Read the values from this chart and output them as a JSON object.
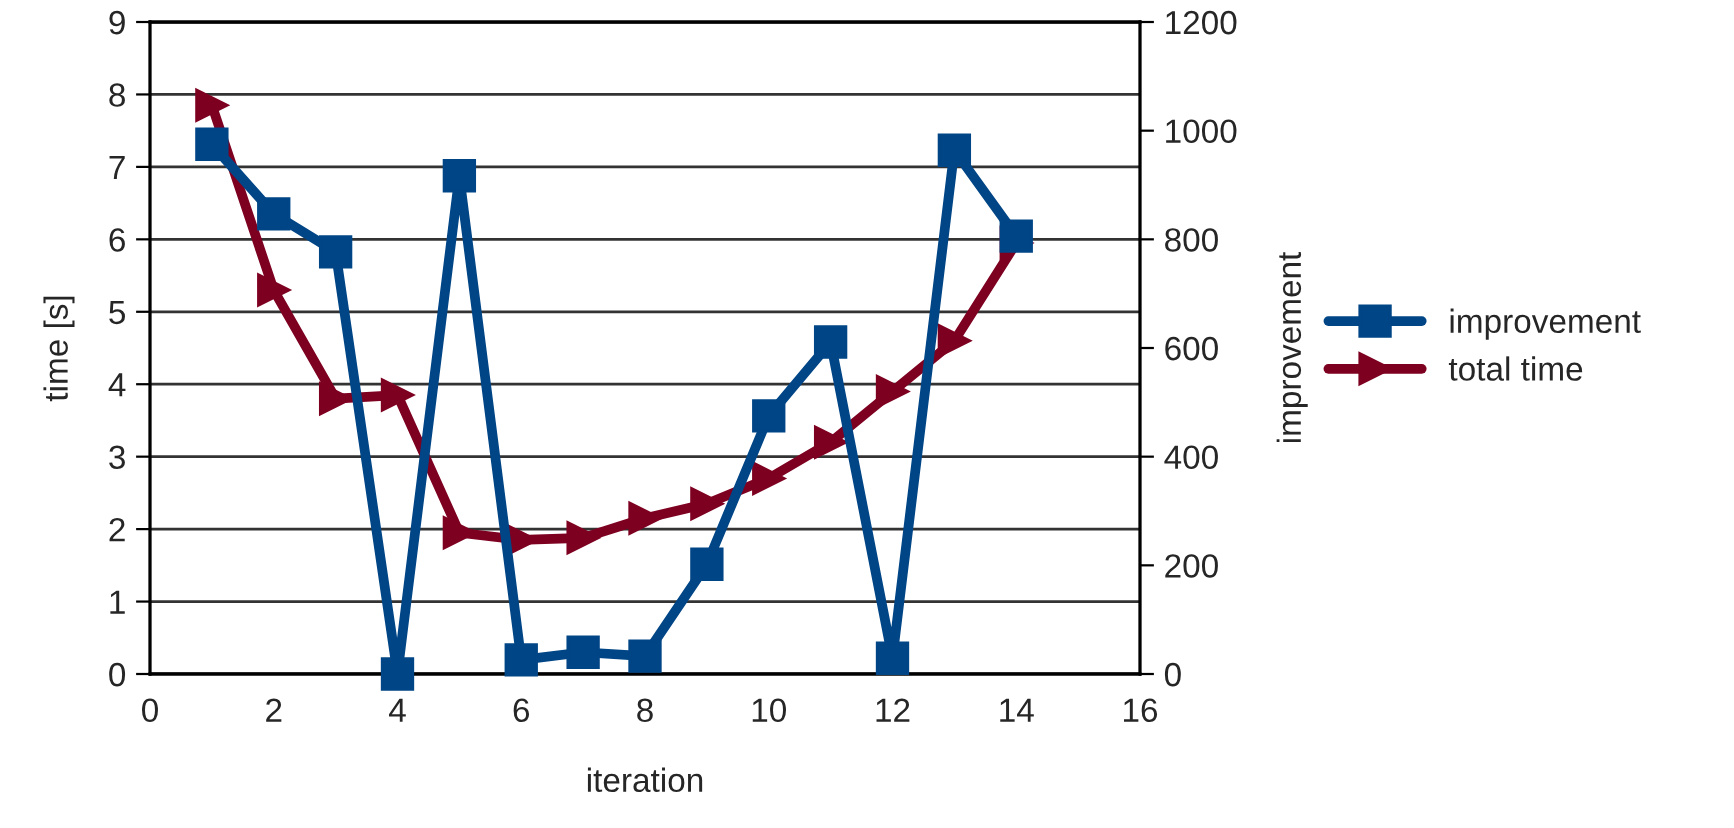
{
  "chart_data": {
    "type": "line",
    "xlabel": "iteration",
    "ylabel": "time [s]",
    "y2label": "improvement",
    "x": [
      1,
      2,
      3,
      4,
      5,
      6,
      7,
      8,
      9,
      10,
      11,
      12,
      13,
      14
    ],
    "series": [
      {
        "name": "improvement",
        "color": "#004586",
        "axis": "y2",
        "marker": "square",
        "values": [
          975,
          847,
          777,
          0,
          917,
          26,
          40,
          33,
          202,
          475,
          611,
          29,
          964,
          806
        ]
      },
      {
        "name": "total time",
        "color": "#7e0021",
        "marker": "triangle",
        "values": [
          7.85,
          5.3,
          3.8,
          3.85,
          1.95,
          1.85,
          1.88,
          2.15,
          2.35,
          2.7,
          3.2,
          3.9,
          4.6,
          5.95
        ]
      }
    ],
    "xlim": [
      0,
      16
    ],
    "xticks": [
      0,
      2,
      4,
      6,
      8,
      10,
      12,
      14,
      16
    ],
    "ylim": [
      0,
      9
    ],
    "yticks": [
      0,
      1,
      2,
      3,
      4,
      5,
      6,
      7,
      8,
      9
    ],
    "y2lim": [
      0,
      1200
    ],
    "y2ticks": [
      0,
      200,
      400,
      600,
      800,
      1000,
      1200
    ],
    "grid": "y",
    "legend": "right",
    "line_style": "solid"
  }
}
